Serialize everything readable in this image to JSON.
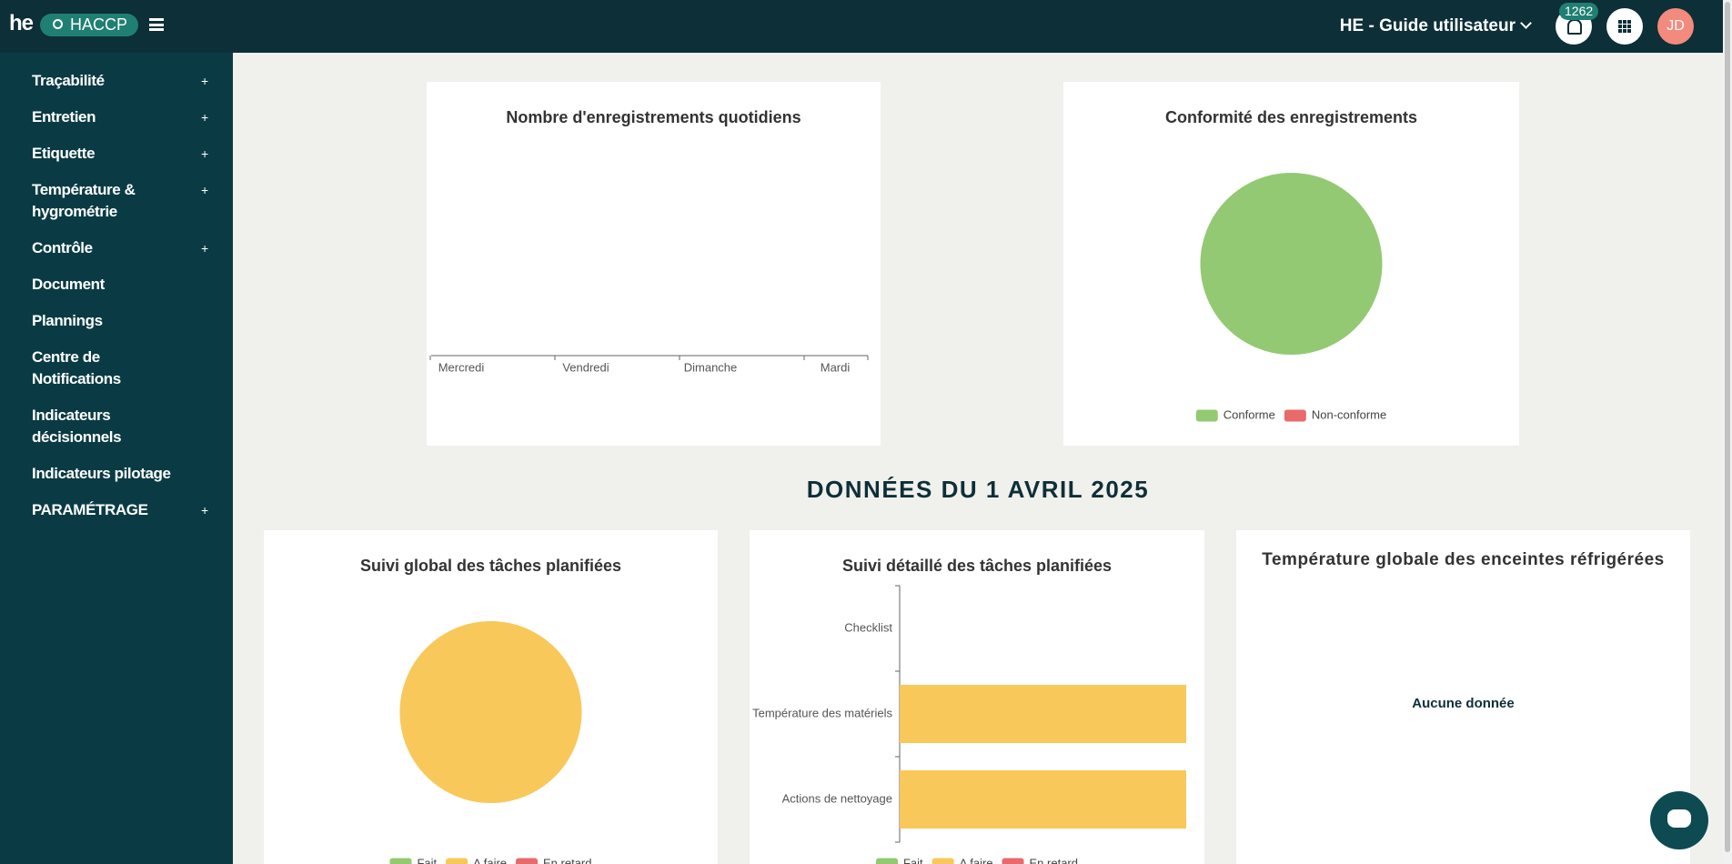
{
  "header": {
    "logo": "he",
    "app": "HACCP",
    "workspace": "HE - Guide utilisateur",
    "notifications": "1262",
    "avatar": "JD"
  },
  "sidebar": {
    "items": [
      {
        "label": "Traçabilité",
        "expand": "+"
      },
      {
        "label": "Entretien",
        "expand": "+"
      },
      {
        "label": "Etiquette",
        "expand": "+"
      },
      {
        "label": "Température & hygrométrie",
        "expand": "+"
      },
      {
        "label": "Contrôle",
        "expand": "+"
      },
      {
        "label": "Document"
      },
      {
        "label": "Plannings"
      },
      {
        "label": "Centre de Notifications"
      },
      {
        "label": "Indicateurs décisionnels"
      },
      {
        "label": "Indicateurs pilotage"
      },
      {
        "label": "PARAMÉTRAGE",
        "expand": "+"
      }
    ]
  },
  "section_heading": "DONNÉES DU 1 AVRIL 2025",
  "chart_data": [
    {
      "type": "line",
      "title": "Nombre d'enregistrements quotidiens",
      "categories": [
        "Mercredi",
        "Vendredi",
        "Dimanche",
        "Mardi"
      ]
    },
    {
      "type": "pie",
      "title": "Conformité des enregistrements",
      "categories": [
        "Conforme",
        "Non-conforme"
      ],
      "values": [
        100,
        0
      ],
      "colors": [
        "#93c972",
        "#e86a6a"
      ]
    },
    {
      "type": "pie",
      "title": "Suivi global des tâches planifiées",
      "categories": [
        "Fait",
        "A faire",
        "En retard"
      ],
      "values": [
        0,
        100,
        0
      ],
      "colors": [
        "#93c972",
        "#f9c85a",
        "#e86a6a"
      ]
    },
    {
      "type": "bar",
      "orientation": "horizontal",
      "stacked": true,
      "title": "Suivi détaillé des tâches planifiées",
      "categories": [
        "Checklist",
        "Température des matériels",
        "Actions de nettoyage"
      ],
      "series": [
        {
          "name": "Fait",
          "color": "#93c972",
          "values": [
            0,
            0,
            0
          ]
        },
        {
          "name": "A faire",
          "color": "#f9c85a",
          "values": [
            0,
            1,
            1
          ]
        },
        {
          "name": "En retard",
          "color": "#e86a6a",
          "values": [
            0,
            0,
            0
          ]
        }
      ],
      "xlim": [
        0,
        1
      ]
    },
    {
      "type": "empty",
      "title": "Température globale des enceintes réfrigérées",
      "message": "Aucune donnée"
    }
  ]
}
